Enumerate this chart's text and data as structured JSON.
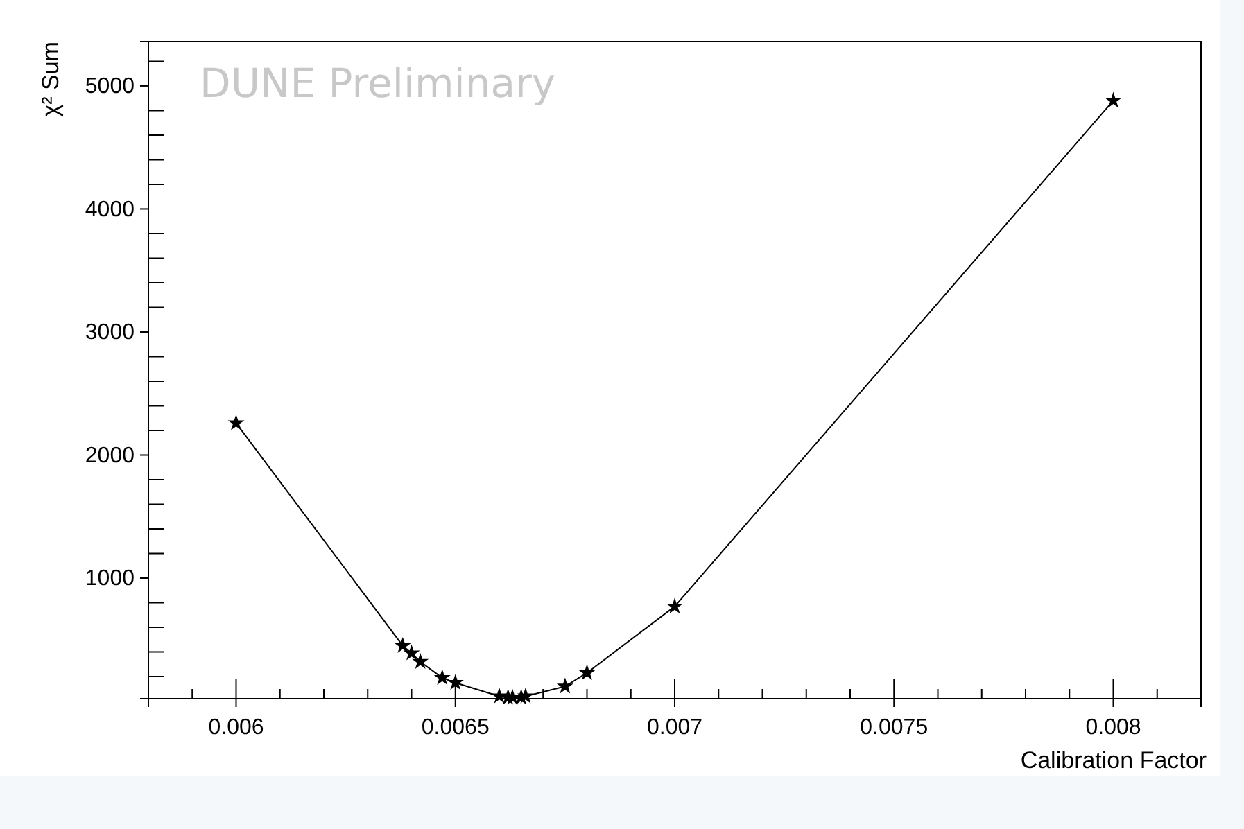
{
  "chart_data": {
    "type": "line",
    "xlabel": "Calibration Factor",
    "ylabel": "χ² Sum",
    "annotations": [
      "DUNE Preliminary"
    ],
    "x": [
      0.006,
      0.00638,
      0.0064,
      0.00642,
      0.00647,
      0.0065,
      0.0066,
      0.00662,
      0.00663,
      0.00665,
      0.00666,
      0.00675,
      0.0068,
      0.007,
      0.008
    ],
    "series": [
      {
        "color": "#000000",
        "values": [
          2260,
          450,
          390,
          320,
          190,
          150,
          40,
          30,
          30,
          30,
          40,
          120,
          230,
          770,
          4880
        ]
      }
    ],
    "xlim": [
      0.0058,
      0.0082
    ],
    "xticks": [
      0.006,
      0.0065,
      0.007,
      0.0075,
      0.008
    ],
    "ylim": [
      20,
      5360
    ],
    "yticks": [
      1000,
      2000,
      3000,
      4000,
      5000
    ],
    "grid": false,
    "marker": "star",
    "line_style": "solid"
  }
}
